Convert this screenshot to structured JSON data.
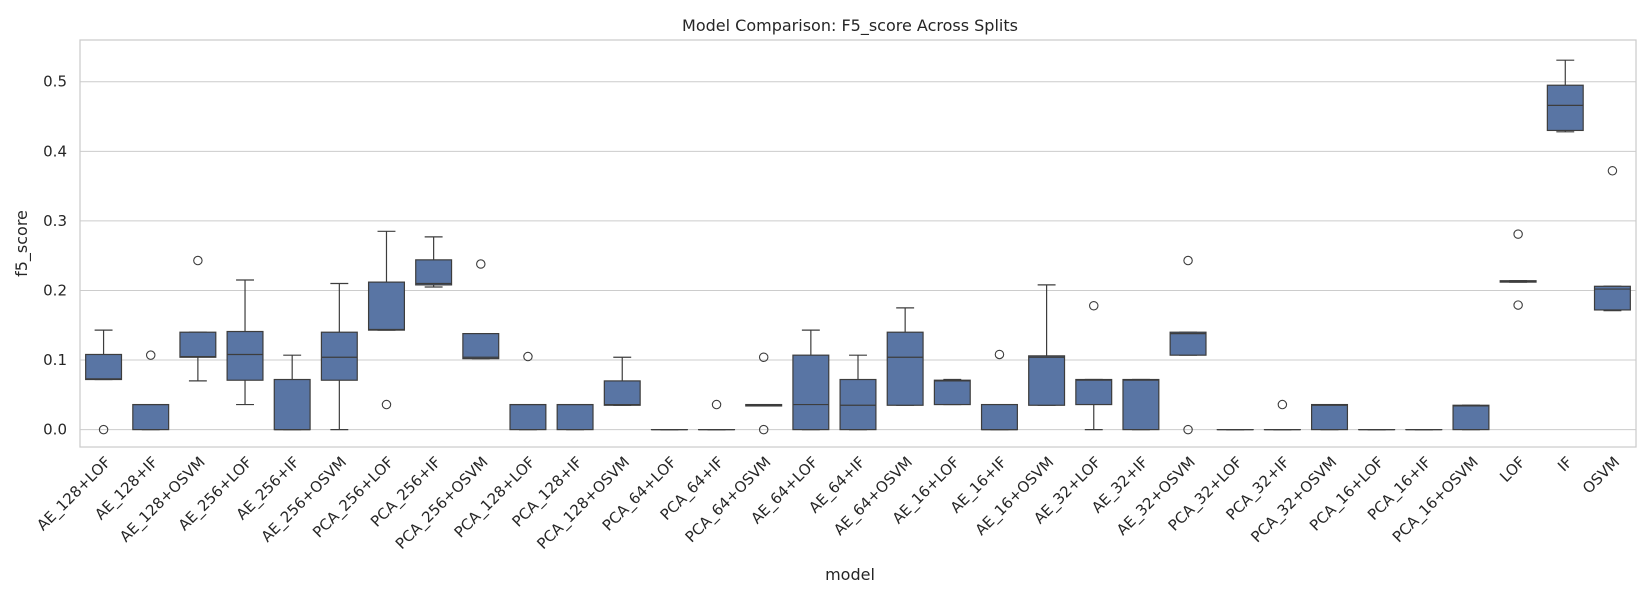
{
  "chart_data": {
    "type": "box",
    "title": "Model Comparison: F5_score Across Splits",
    "xlabel": "model",
    "ylabel": "f5_score",
    "ylim": [
      -0.025,
      0.56
    ],
    "yticks": [
      0.0,
      0.1,
      0.2,
      0.3,
      0.4,
      0.5
    ],
    "ytick_labels": [
      "0.0",
      "0.1",
      "0.2",
      "0.3",
      "0.4",
      "0.5"
    ],
    "grid": true,
    "box_color": "#5975a4",
    "edge_color": "#3d3d3d",
    "grid_color": "#cccccc",
    "categories": [
      "AE_128+LOF",
      "AE_128+IF",
      "AE_128+OSVM",
      "AE_256+LOF",
      "AE_256+IF",
      "AE_256+OSVM",
      "PCA_256+LOF",
      "PCA_256+IF",
      "PCA_256+OSVM",
      "PCA_128+LOF",
      "PCA_128+IF",
      "PCA_128+OSVM",
      "PCA_64+LOF",
      "PCA_64+IF",
      "PCA_64+OSVM",
      "AE_64+LOF",
      "AE_64+IF",
      "AE_64+OSVM",
      "AE_16+LOF",
      "AE_16+IF",
      "AE_16+OSVM",
      "AE_32+LOF",
      "AE_32+IF",
      "AE_32+OSVM",
      "PCA_32+LOF",
      "PCA_32+IF",
      "PCA_32+OSVM",
      "PCA_16+LOF",
      "PCA_16+IF",
      "PCA_16+OSVM",
      "LOF",
      "IF",
      "OSVM"
    ],
    "boxes": [
      {
        "whislo": 0.072,
        "q1": 0.072,
        "med": 0.073,
        "q3": 0.108,
        "whishi": 0.143,
        "fliers": [
          0.0
        ]
      },
      {
        "whislo": 0.0,
        "q1": 0.0,
        "med": 0.036,
        "q3": 0.036,
        "whishi": 0.036,
        "fliers": [
          0.107
        ]
      },
      {
        "whislo": 0.07,
        "q1": 0.104,
        "med": 0.105,
        "q3": 0.14,
        "whishi": 0.14,
        "fliers": [
          0.243
        ]
      },
      {
        "whislo": 0.036,
        "q1": 0.071,
        "med": 0.108,
        "q3": 0.141,
        "whishi": 0.215,
        "fliers": []
      },
      {
        "whislo": 0.0,
        "q1": 0.0,
        "med": 0.0,
        "q3": 0.072,
        "whishi": 0.107,
        "fliers": []
      },
      {
        "whislo": 0.0,
        "q1": 0.071,
        "med": 0.104,
        "q3": 0.14,
        "whishi": 0.21,
        "fliers": []
      },
      {
        "whislo": 0.143,
        "q1": 0.143,
        "med": 0.144,
        "q3": 0.212,
        "whishi": 0.285,
        "fliers": [
          0.036
        ]
      },
      {
        "whislo": 0.205,
        "q1": 0.208,
        "med": 0.21,
        "q3": 0.244,
        "whishi": 0.277,
        "fliers": []
      },
      {
        "whislo": 0.102,
        "q1": 0.102,
        "med": 0.104,
        "q3": 0.138,
        "whishi": 0.138,
        "fliers": [
          0.238
        ]
      },
      {
        "whislo": 0.0,
        "q1": 0.0,
        "med": 0.036,
        "q3": 0.036,
        "whishi": 0.036,
        "fliers": [
          0.105
        ]
      },
      {
        "whislo": 0.0,
        "q1": 0.0,
        "med": 0.036,
        "q3": 0.036,
        "whishi": 0.036,
        "fliers": []
      },
      {
        "whislo": 0.035,
        "q1": 0.035,
        "med": 0.036,
        "q3": 0.07,
        "whishi": 0.104,
        "fliers": []
      },
      {
        "whislo": 0.0,
        "q1": 0.0,
        "med": 0.0,
        "q3": 0.0,
        "whishi": 0.0,
        "fliers": []
      },
      {
        "whislo": 0.0,
        "q1": 0.0,
        "med": 0.0,
        "q3": 0.0,
        "whishi": 0.0,
        "fliers": [
          0.036
        ]
      },
      {
        "whislo": 0.034,
        "q1": 0.034,
        "med": 0.035,
        "q3": 0.036,
        "whishi": 0.036,
        "fliers": [
          0.0,
          0.104
        ]
      },
      {
        "whislo": 0.0,
        "q1": 0.0,
        "med": 0.036,
        "q3": 0.107,
        "whishi": 0.143,
        "fliers": []
      },
      {
        "whislo": 0.0,
        "q1": 0.0,
        "med": 0.035,
        "q3": 0.072,
        "whishi": 0.107,
        "fliers": []
      },
      {
        "whislo": 0.035,
        "q1": 0.035,
        "med": 0.104,
        "q3": 0.14,
        "whishi": 0.175,
        "fliers": []
      },
      {
        "whislo": 0.036,
        "q1": 0.036,
        "med": 0.07,
        "q3": 0.071,
        "whishi": 0.072,
        "fliers": []
      },
      {
        "whislo": 0.0,
        "q1": 0.0,
        "med": 0.0,
        "q3": 0.036,
        "whishi": 0.036,
        "fliers": [
          0.108
        ]
      },
      {
        "whislo": 0.035,
        "q1": 0.035,
        "med": 0.104,
        "q3": 0.106,
        "whishi": 0.208,
        "fliers": []
      },
      {
        "whislo": 0.0,
        "q1": 0.036,
        "med": 0.071,
        "q3": 0.072,
        "whishi": 0.072,
        "fliers": [
          0.178
        ]
      },
      {
        "whislo": 0.0,
        "q1": 0.0,
        "med": 0.071,
        "q3": 0.072,
        "whishi": 0.072,
        "fliers": []
      },
      {
        "whislo": 0.107,
        "q1": 0.107,
        "med": 0.138,
        "q3": 0.14,
        "whishi": 0.14,
        "fliers": [
          0.0,
          0.243
        ]
      },
      {
        "whislo": 0.0,
        "q1": 0.0,
        "med": 0.0,
        "q3": 0.0,
        "whishi": 0.0,
        "fliers": []
      },
      {
        "whislo": 0.0,
        "q1": 0.0,
        "med": 0.0,
        "q3": 0.0,
        "whishi": 0.0,
        "fliers": [
          0.036
        ]
      },
      {
        "whislo": 0.0,
        "q1": 0.0,
        "med": 0.035,
        "q3": 0.036,
        "whishi": 0.036,
        "fliers": []
      },
      {
        "whislo": 0.0,
        "q1": 0.0,
        "med": 0.0,
        "q3": 0.0,
        "whishi": 0.0,
        "fliers": []
      },
      {
        "whislo": 0.0,
        "q1": 0.0,
        "med": 0.0,
        "q3": 0.0,
        "whishi": 0.0,
        "fliers": []
      },
      {
        "whislo": 0.0,
        "q1": 0.0,
        "med": 0.034,
        "q3": 0.035,
        "whishi": 0.035,
        "fliers": []
      },
      {
        "whislo": 0.212,
        "q1": 0.212,
        "med": 0.213,
        "q3": 0.214,
        "whishi": 0.214,
        "fliers": [
          0.179,
          0.281
        ]
      },
      {
        "whislo": 0.428,
        "q1": 0.43,
        "med": 0.466,
        "q3": 0.495,
        "whishi": 0.531,
        "fliers": []
      },
      {
        "whislo": 0.171,
        "q1": 0.172,
        "med": 0.202,
        "q3": 0.206,
        "whishi": 0.206,
        "fliers": [
          0.372
        ]
      }
    ]
  }
}
